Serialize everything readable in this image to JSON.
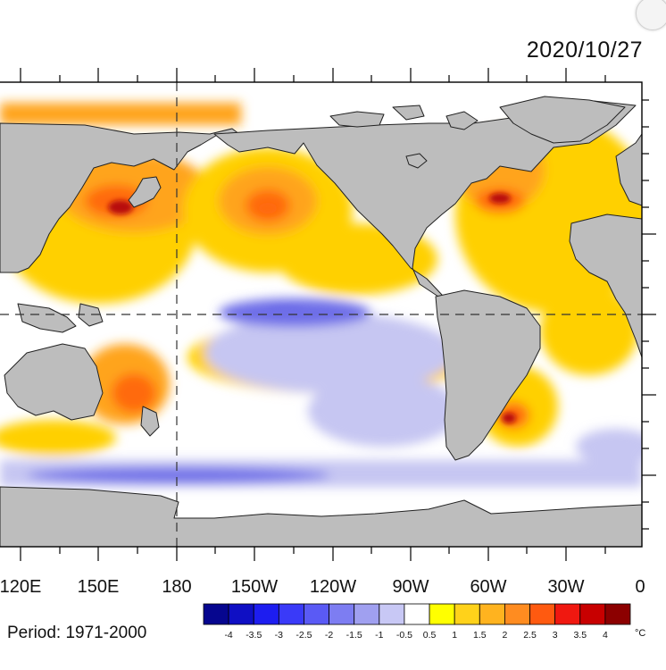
{
  "date": "2020/10/27",
  "period_label": "Period: 1971-2000",
  "lon_labels": [
    "120E",
    "150E",
    "180",
    "150W",
    "120W",
    "90W",
    "60W",
    "30W",
    "0"
  ],
  "colorbar": {
    "unit": "°C",
    "ticks": [
      "-4",
      "-3.5",
      "-3",
      "-2.5",
      "-2",
      "-1.5",
      "-1",
      "-0.5",
      "0.5",
      "1",
      "1.5",
      "2",
      "2.5",
      "3",
      "3.5",
      "4"
    ],
    "colors": [
      "#06068f",
      "#0f0fc4",
      "#1d1df0",
      "#3a3af8",
      "#5a5af5",
      "#7d7df2",
      "#a0a0f0",
      "#c8c8f5",
      "#ffffff",
      "#ffff00",
      "#ffd21a",
      "#ffb31f",
      "#ff8c20",
      "#ff5a10",
      "#f01810",
      "#c80000",
      "#8c0000"
    ]
  },
  "map_colors": {
    "land": "#bdbdbd",
    "coast": "#222222",
    "cold": "#6e6ee8",
    "cool": "#c6c6f2",
    "warm": "#ffd000",
    "warmer": "#ffa41e",
    "hot": "#ff6a10",
    "hottest": "#b80a0a"
  }
}
